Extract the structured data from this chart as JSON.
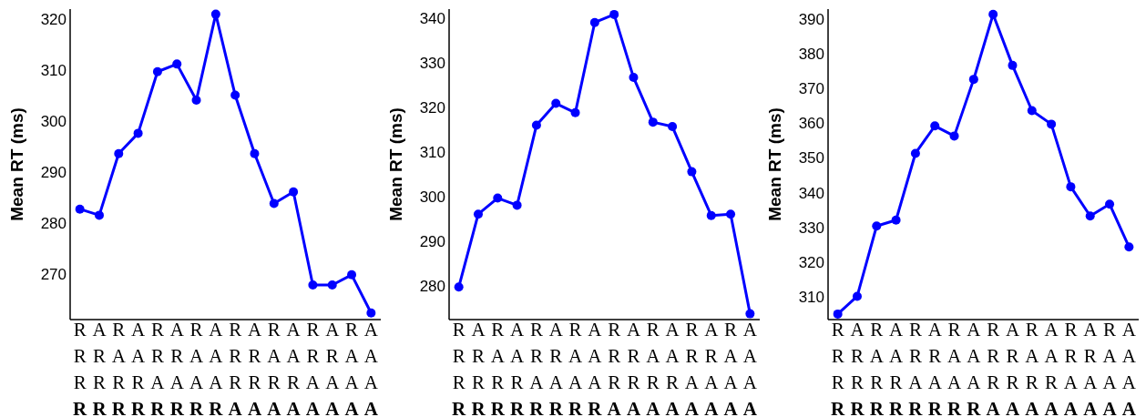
{
  "chart_data": [
    {
      "type": "line",
      "ylabel": "Mean RT (ms)",
      "categories": [
        "R\nR\nR\nR",
        "A\nR\nR\nR",
        "R\nA\nR\nR",
        "A\nA\nR\nR",
        "R\nR\nA\nR",
        "A\nR\nA\nR",
        "R\nA\nA\nR",
        "A\nA\nA\nR",
        "R\nR\nR\nA",
        "A\nR\nR\nA",
        "R\nA\nR\nA",
        "A\nA\nR\nA",
        "R\nR\nA\nA",
        "A\nR\nA\nA",
        "R\nA\nA\nA",
        "A\nA\nA\nA"
      ],
      "values": [
        282.7,
        281.5,
        293.6,
        297.6,
        309.7,
        311.2,
        304.1,
        321.0,
        305.1,
        293.6,
        283.8,
        286.1,
        267.8,
        267.8,
        269.8,
        262.3
      ],
      "color": "#0000ff",
      "ylim": [
        261,
        322
      ],
      "yticks": [
        270,
        280,
        290,
        300,
        310,
        320
      ],
      "grid": false,
      "marker": "circle",
      "line_style": "solid"
    },
    {
      "type": "line",
      "ylabel": "Mean RT (ms)",
      "categories": [
        "R\nR\nR\nR",
        "A\nR\nR\nR",
        "R\nA\nR\nR",
        "A\nA\nR\nR",
        "R\nR\nA\nR",
        "A\nR\nA\nR",
        "R\nA\nA\nR",
        "A\nA\nA\nR",
        "R\nR\nR\nA",
        "A\nR\nR\nA",
        "R\nA\nR\nA",
        "A\nA\nR\nA",
        "R\nR\nA\nA",
        "A\nR\nA\nA",
        "R\nA\nA\nA",
        "A\nA\nA\nA"
      ],
      "values": [
        279.8,
        296.1,
        299.7,
        298.1,
        316.0,
        320.9,
        318.8,
        339.0,
        340.8,
        326.7,
        316.7,
        315.7,
        305.6,
        295.8,
        296.1,
        273.8
      ],
      "color": "#0000ff",
      "ylim": [
        272.5,
        342
      ],
      "yticks": [
        280,
        290,
        300,
        310,
        320,
        330,
        340
      ],
      "grid": false,
      "marker": "circle",
      "line_style": "solid"
    },
    {
      "type": "line",
      "ylabel": "Mean RT (ms)",
      "categories": [
        "R\nR\nR\nR",
        "A\nR\nR\nR",
        "R\nA\nR\nR",
        "A\nA\nR\nR",
        "R\nR\nA\nR",
        "A\nR\nA\nR",
        "R\nA\nA\nR",
        "A\nA\nA\nR",
        "R\nR\nR\nA",
        "A\nR\nR\nA",
        "R\nA\nR\nA",
        "A\nA\nR\nA",
        "R\nR\nA\nA",
        "A\nR\nA\nA",
        "R\nA\nA\nA",
        "A\nA\nA\nA"
      ],
      "values": [
        305.1,
        310.2,
        330.4,
        332.1,
        351.3,
        359.2,
        356.3,
        372.6,
        391.3,
        376.6,
        363.6,
        359.7,
        341.7,
        333.3,
        336.7,
        324.4
      ],
      "color": "#0000ff",
      "ylim": [
        303.5,
        392.8
      ],
      "yticks": [
        310,
        320,
        330,
        340,
        350,
        360,
        370,
        380,
        390
      ],
      "grid": false,
      "marker": "circle",
      "line_style": "solid"
    }
  ]
}
